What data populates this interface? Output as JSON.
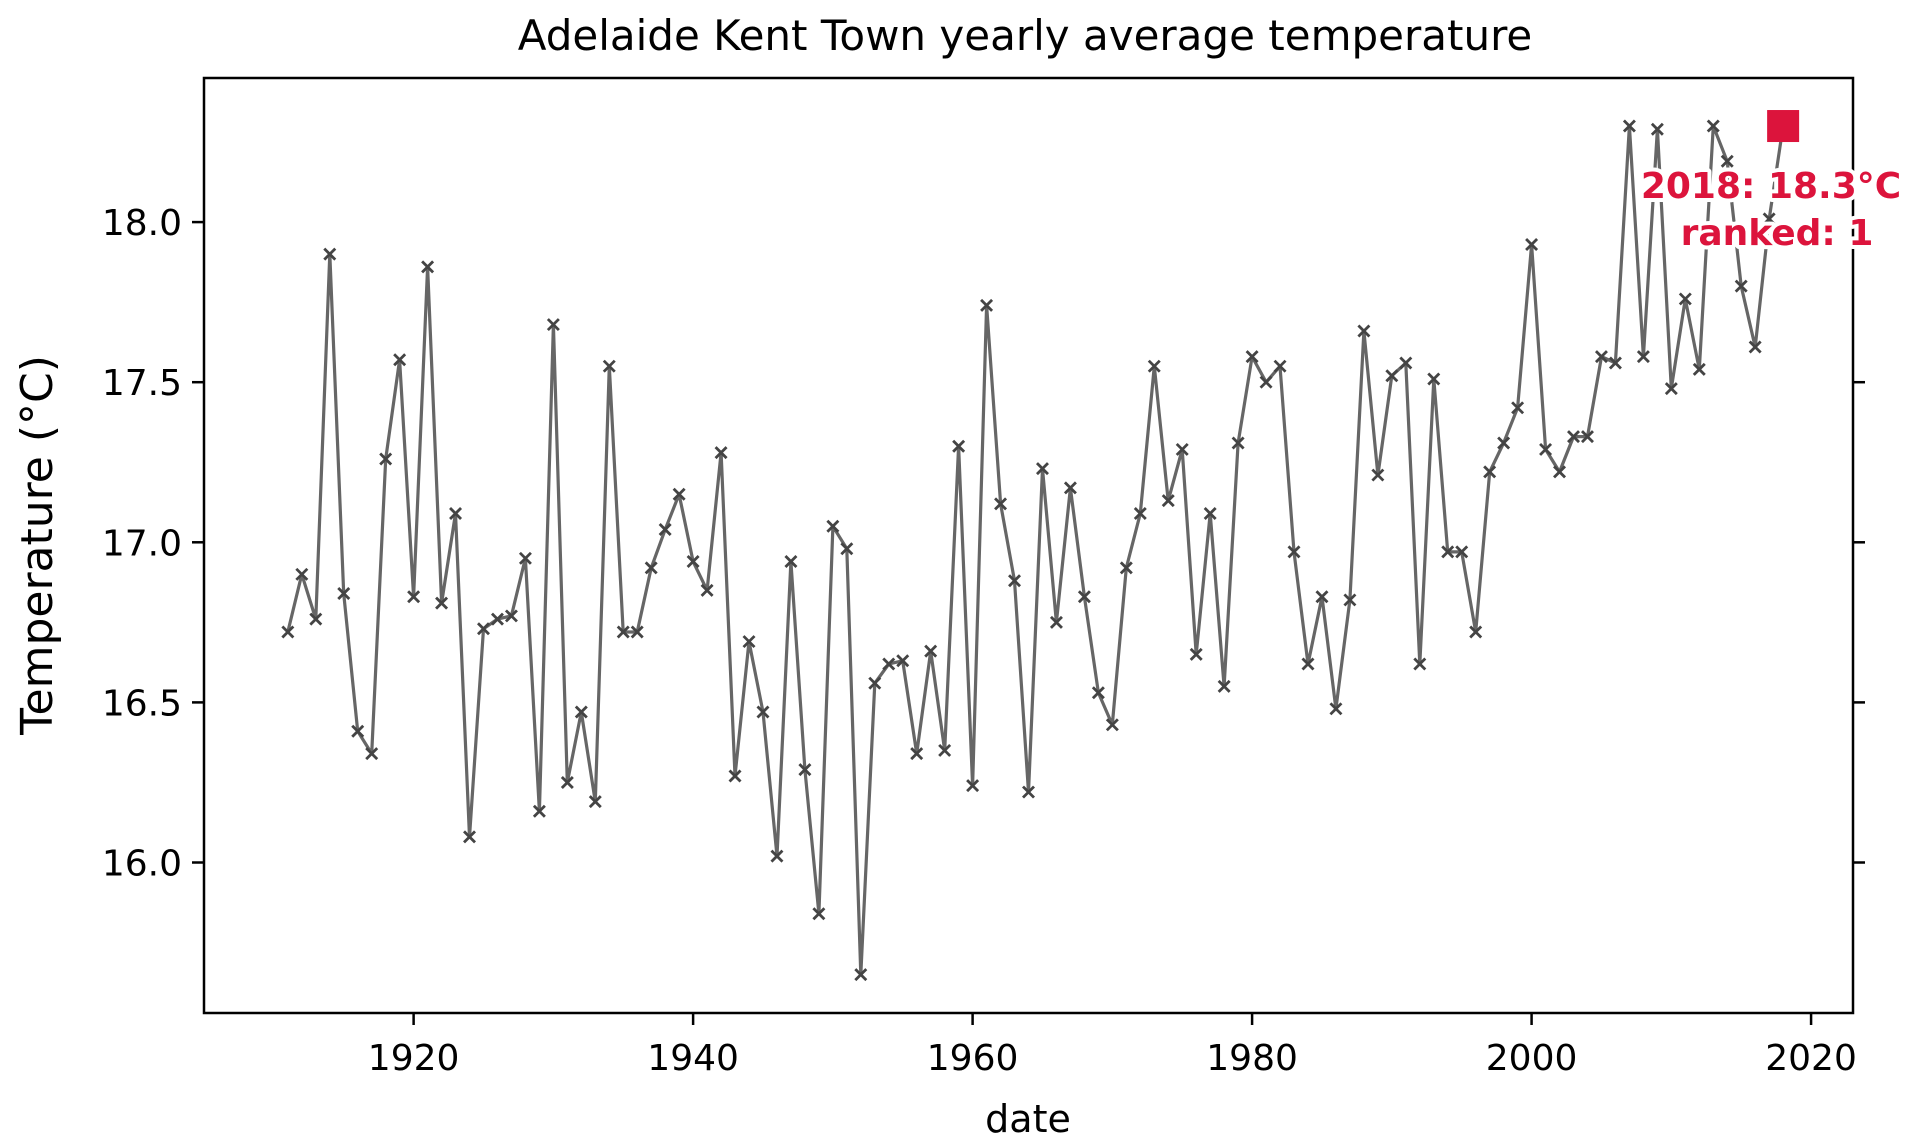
{
  "chart_data": {
    "type": "line",
    "title": "Adelaide Kent Town yearly average temperature",
    "xlabel": "date",
    "ylabel": "Temperature (°C)",
    "xlim": [
      1905,
      2023
    ],
    "ylim": [
      15.53,
      18.45
    ],
    "xticks": [
      1920,
      1940,
      1960,
      1980,
      2000,
      2020
    ],
    "yticks": [
      16.0,
      16.5,
      17.0,
      17.5,
      18.0
    ],
    "ytick_labels": [
      "16.0",
      "16.5",
      "17.0",
      "17.5",
      "18.0"
    ],
    "grid": false,
    "colors": {
      "series": "#666666",
      "highlight": "#DC143C",
      "axes": "#000000"
    },
    "series": [
      {
        "x": [
          1911,
          1912,
          1913,
          1914,
          1915,
          1916,
          1917,
          1918,
          1919,
          1920,
          1921,
          1922,
          1923,
          1924,
          1925,
          1926,
          1927,
          1928,
          1929,
          1930,
          1931,
          1932,
          1933,
          1934,
          1935,
          1936,
          1937,
          1938,
          1939,
          1940,
          1941,
          1942,
          1943,
          1944,
          1945,
          1946,
          1947,
          1948,
          1949,
          1950,
          1951,
          1952,
          1953,
          1954,
          1955,
          1956,
          1957,
          1958,
          1959,
          1960,
          1961,
          1962,
          1963,
          1964,
          1965,
          1966,
          1967,
          1968,
          1969,
          1970,
          1971,
          1972,
          1973,
          1974,
          1975,
          1976,
          1977,
          1978,
          1979,
          1980,
          1981,
          1982,
          1983,
          1984,
          1985,
          1986,
          1987,
          1988,
          1989,
          1990,
          1991,
          1992,
          1993,
          1994,
          1995,
          1996,
          1997,
          1998,
          1999,
          2000,
          2001,
          2002,
          2003,
          2004,
          2005,
          2006,
          2007,
          2008,
          2009,
          2010,
          2011,
          2012,
          2013,
          2014,
          2015,
          2016,
          2017,
          2018
        ],
        "values": [
          16.72,
          16.9,
          16.76,
          17.9,
          16.84,
          16.41,
          16.34,
          17.26,
          17.57,
          16.83,
          17.86,
          16.81,
          17.09,
          16.08,
          16.73,
          16.76,
          16.77,
          16.95,
          16.16,
          17.68,
          16.25,
          16.47,
          16.19,
          17.55,
          16.72,
          16.72,
          16.92,
          17.04,
          17.15,
          16.94,
          16.85,
          17.28,
          16.27,
          16.69,
          16.47,
          16.02,
          16.94,
          16.29,
          15.84,
          17.05,
          16.98,
          15.65,
          16.56,
          16.62,
          16.63,
          16.34,
          16.66,
          16.35,
          17.3,
          16.24,
          17.74,
          17.12,
          16.88,
          16.22,
          17.23,
          16.75,
          17.17,
          16.83,
          16.53,
          16.43,
          16.92,
          17.09,
          17.55,
          17.13,
          17.29,
          16.65,
          17.09,
          16.55,
          17.31,
          17.58,
          17.5,
          17.55,
          16.97,
          16.62,
          16.83,
          16.48,
          16.82,
          17.66,
          17.21,
          17.52,
          17.56,
          16.62,
          17.51,
          16.97,
          16.97,
          16.72,
          17.22,
          17.31,
          17.42,
          17.93,
          17.29,
          17.22,
          17.33,
          17.33,
          17.58,
          17.56,
          18.3,
          17.58,
          18.29,
          17.48,
          17.76,
          17.54,
          18.3,
          18.19,
          17.8,
          17.61,
          18.01,
          18.3
        ]
      }
    ],
    "highlight": {
      "x": 2018,
      "y": 18.3,
      "line1": "2018: 18.3°C",
      "line2": "ranked: 1"
    }
  }
}
